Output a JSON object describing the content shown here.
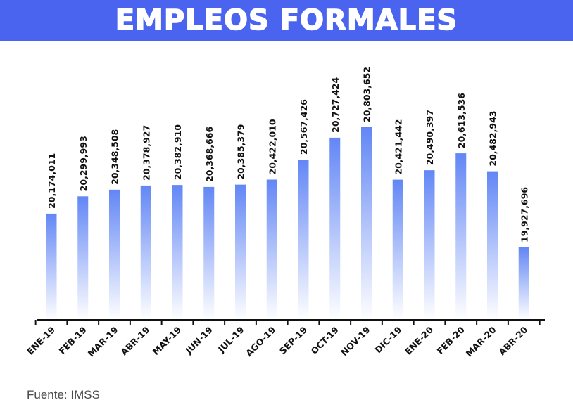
{
  "header": {
    "title": "EMPLEOS FORMALES"
  },
  "footer": {
    "source": "Fuente: IMSS"
  },
  "colors": {
    "title_bg": "#4a64f0",
    "bar_top": "#6286f5",
    "bar_bottom": "#ffffff"
  },
  "chart_data": {
    "type": "bar",
    "title": "EMPLEOS FORMALES",
    "categories": [
      "ENE-19",
      "FEB-19",
      "MAR-19",
      "ABR-19",
      "MAY-19",
      "JUN-19",
      "JUL-19",
      "AGO-19",
      "SEP-19",
      "OCT-19",
      "NOV-19",
      "DIC-19",
      "ENE-20",
      "FEB-20",
      "MAR-20",
      "ABR-20"
    ],
    "values": [
      20174011,
      20299993,
      20348508,
      20378927,
      20382910,
      20368666,
      20385379,
      20422010,
      20567426,
      20727424,
      20803652,
      20421442,
      20490397,
      20613536,
      20482943,
      19927696
    ],
    "value_labels": [
      "20,174,011",
      "20,299,993",
      "20,348,508",
      "20,378,927",
      "20,382,910",
      "20,368,666",
      "20,385,379",
      "20,422,010",
      "20,567,426",
      "20,727,424",
      "20,803,652",
      "20,421,442",
      "20,490,397",
      "20,613,536",
      "20,482,943",
      "19,927,696"
    ],
    "xlabel": "",
    "ylabel": "",
    "ylim": [
      19400000,
      20860000
    ],
    "grid": false,
    "legend": false
  }
}
